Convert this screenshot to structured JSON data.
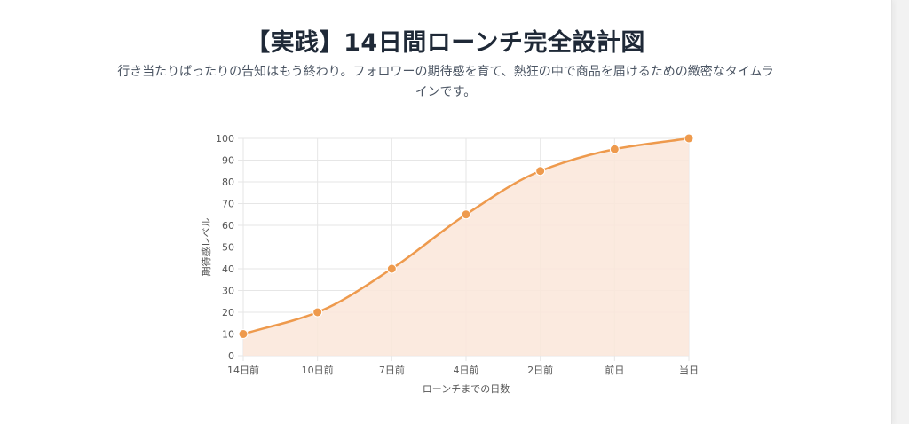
{
  "header": {
    "title": "【実践】14日間ローンチ完全設計図",
    "subtitle": "行き当たりばったりの告知はもう終わり。フォロワーの期待感を育て、熱狂の中で商品を届けるための緻密なタイムラインです。"
  },
  "chart_data": {
    "type": "line",
    "title": "",
    "xlabel": "ローンチまでの日数",
    "ylabel": "期待感レベル",
    "categories": [
      "14日前",
      "10日前",
      "7日前",
      "4日前",
      "2日前",
      "前日",
      "当日"
    ],
    "series": [
      {
        "values": [
          10,
          20,
          40,
          65,
          85,
          95,
          100
        ]
      }
    ],
    "ylim": [
      0,
      100
    ],
    "yticks": [
      "0",
      "10",
      "20",
      "30",
      "40",
      "50",
      "60",
      "70",
      "80",
      "90",
      "100"
    ],
    "grid": true,
    "fill": "area",
    "colors": {
      "line": "#ee9a4d",
      "fill": "#fae6d9",
      "grid": "#e6e6e6",
      "axis": "#555555"
    }
  }
}
